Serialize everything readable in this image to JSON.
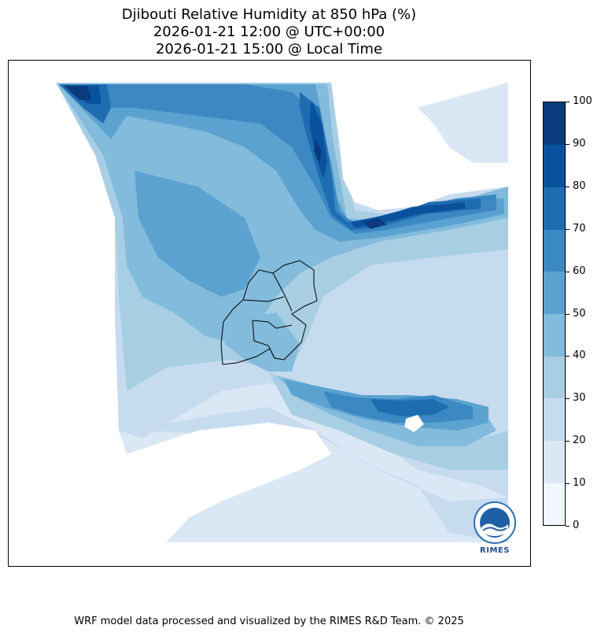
{
  "title": {
    "line1": "Djibouti Relative Humidity at 850 hPa (%)",
    "line2": "2026-01-21 12:00 @ UTC+00:00",
    "line3": "2026-01-21 15:00 @ Local Time"
  },
  "colorbar": {
    "ticks": [
      "0",
      "10",
      "20",
      "30",
      "40",
      "50",
      "60",
      "70",
      "80",
      "90",
      "100"
    ],
    "levels": [
      0,
      10,
      20,
      30,
      40,
      50,
      60,
      70,
      80,
      90,
      100
    ],
    "colors": [
      "#f0f6fd",
      "#dae8f6",
      "#c7dbef",
      "#a8cee4",
      "#82bbdb",
      "#5ba2d0",
      "#3b88c2",
      "#1f6db1",
      "#0b529e",
      "#0a3b7d"
    ]
  },
  "logo": {
    "text": "RIMES",
    "icon": "rimes-logo-icon"
  },
  "footer": "WRF model data processed and visualized by the RIMES R&D Team. © 2025",
  "chart_data": {
    "type": "heatmap",
    "variable": "Relative Humidity at 850 hPa",
    "unit": "%",
    "range": [
      0,
      100
    ],
    "region": "Djibouti",
    "valid_utc": "2026-01-21 12:00",
    "valid_local": "2026-01-21 15:00"
  }
}
